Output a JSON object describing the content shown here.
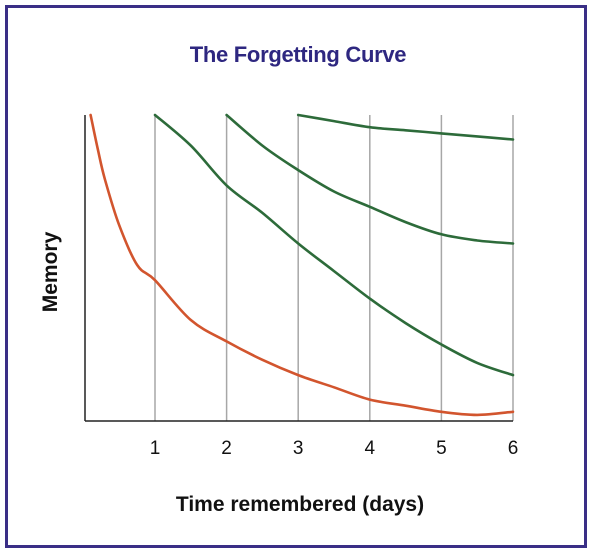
{
  "chart_data": {
    "type": "line",
    "title": "The Forgetting Curve",
    "xlabel": "Time remembered (days)",
    "ylabel": "Memory",
    "xlim": [
      0,
      6
    ],
    "ylim": [
      0,
      100
    ],
    "x_ticks": [
      "1",
      "2",
      "3",
      "4",
      "5",
      "6"
    ],
    "grid": "vertical lines at each day",
    "show_y_ticks": false,
    "series": [
      {
        "color": "#d2552e",
        "points": [
          [
            0.1,
            100
          ],
          [
            0.2,
            89
          ],
          [
            0.3,
            79
          ],
          [
            0.5,
            64
          ],
          [
            0.75,
            51
          ],
          [
            1,
            46
          ],
          [
            1.5,
            33
          ],
          [
            2,
            26
          ],
          [
            2.5,
            20
          ],
          [
            3,
            15
          ],
          [
            3.5,
            11
          ],
          [
            4,
            7
          ],
          [
            4.5,
            5
          ],
          [
            5,
            3
          ],
          [
            5.5,
            2
          ],
          [
            6,
            3
          ]
        ]
      },
      {
        "color": "#2d6b3a",
        "points": [
          [
            1,
            100
          ],
          [
            1.5,
            90
          ],
          [
            2,
            77
          ],
          [
            2.5,
            68
          ],
          [
            3,
            58
          ],
          [
            3.5,
            49
          ],
          [
            4,
            40
          ],
          [
            4.5,
            32
          ],
          [
            5,
            25
          ],
          [
            5.5,
            19
          ],
          [
            6,
            15
          ]
        ]
      },
      {
        "color": "#2d6b3a",
        "points": [
          [
            2,
            100
          ],
          [
            2.5,
            90
          ],
          [
            3,
            82
          ],
          [
            3.5,
            75
          ],
          [
            4,
            70
          ],
          [
            4.5,
            65
          ],
          [
            5,
            61
          ],
          [
            5.5,
            59
          ],
          [
            6,
            58
          ]
        ]
      },
      {
        "color": "#2d6b3a",
        "points": [
          [
            3,
            100
          ],
          [
            3.5,
            98
          ],
          [
            4,
            96
          ],
          [
            4.5,
            95
          ],
          [
            5,
            94
          ],
          [
            5.5,
            93
          ],
          [
            6,
            92
          ]
        ]
      }
    ]
  }
}
